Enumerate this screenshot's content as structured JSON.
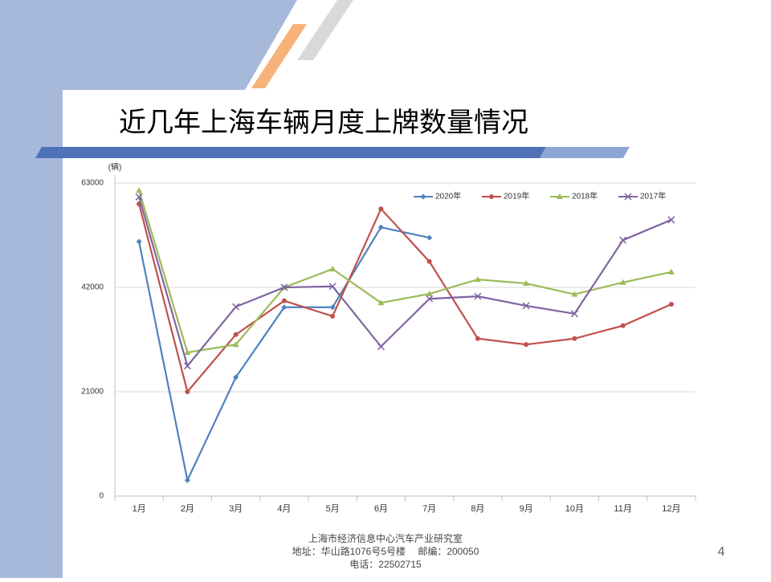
{
  "chart_data": {
    "type": "line",
    "title": "近几年上海车辆月度上牌数量情况",
    "y_label": "(辆)",
    "categories": [
      "1月",
      "2月",
      "3月",
      "4月",
      "5月",
      "6月",
      "7月",
      "8月",
      "9月",
      "10月",
      "11月",
      "12月"
    ],
    "series": [
      {
        "name": "2020年",
        "color": "#4f81bd",
        "marker": "diamond",
        "values": [
          51200,
          3200,
          23900,
          38000,
          38000,
          54100,
          52000,
          null,
          null,
          null,
          null,
          null
        ]
      },
      {
        "name": "2019年",
        "color": "#c0504d",
        "marker": "circle",
        "values": [
          58800,
          21000,
          32500,
          39300,
          36200,
          57800,
          47200,
          31700,
          30500,
          31700,
          34300,
          38600
        ]
      },
      {
        "name": "2018年",
        "color": "#9bbb59",
        "marker": "triangle",
        "values": [
          61500,
          28900,
          30500,
          42000,
          45700,
          38900,
          40700,
          43600,
          42800,
          40600,
          43000,
          45100
        ]
      },
      {
        "name": "2017年",
        "color": "#8064a2",
        "marker": "x",
        "values": [
          60200,
          26200,
          38100,
          42000,
          42200,
          30100,
          39700,
          40200,
          38300,
          36700,
          51500,
          55600
        ]
      }
    ],
    "ylim": [
      0,
      63000
    ],
    "yticks": [
      0,
      21000,
      42000,
      63000
    ],
    "grid": true,
    "legend": "top-right",
    "footer": [
      "上海市经济信息中心汽车产业研究室",
      "地址：华山路1076号5号楼　 邮编：200050",
      "电话：22502715"
    ],
    "page_number": "4"
  }
}
